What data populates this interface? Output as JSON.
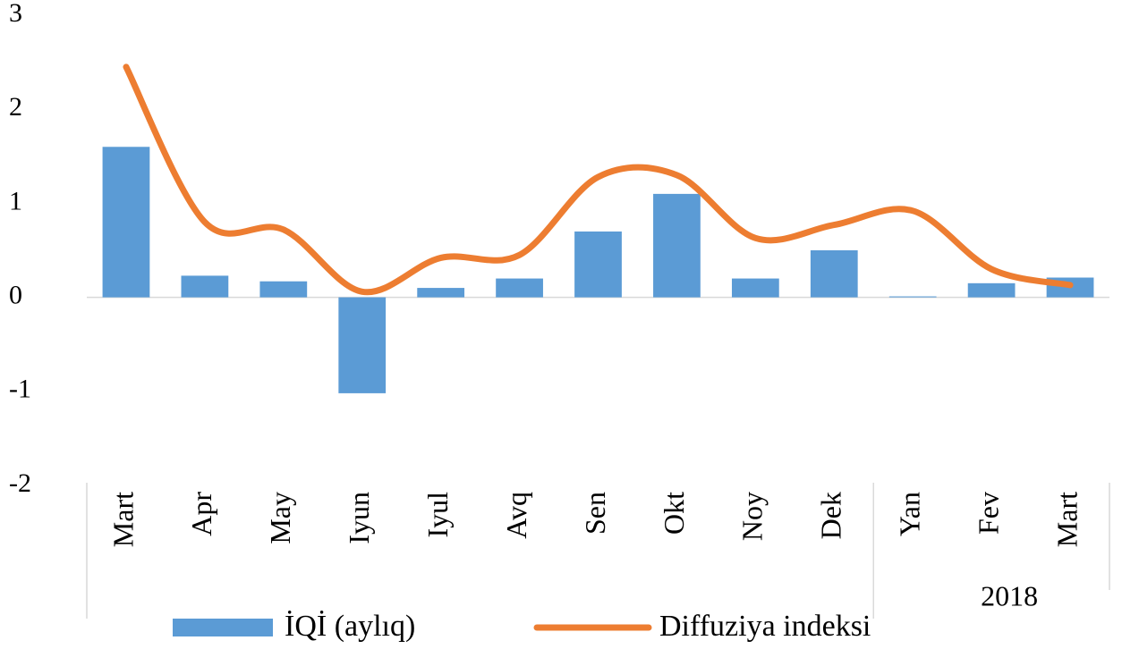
{
  "chart_data": {
    "type": "bar_line",
    "categories": [
      "Mart",
      "Apr",
      "May",
      "Iyun",
      "Iyul",
      "Avq",
      "Sen",
      "Okt",
      "Noy",
      "Dek",
      "Yan",
      "Fev",
      "Mart"
    ],
    "year_label": "2018",
    "series": [
      {
        "name": "İQİ (aylıq)",
        "type": "bar",
        "color": "#5b9bd5",
        "values": [
          1.6,
          0.23,
          0.17,
          -1.02,
          0.1,
          0.2,
          0.7,
          1.1,
          0.2,
          0.5,
          0.01,
          0.15,
          0.21
        ]
      },
      {
        "name": "Diffuziya indeksi",
        "type": "line",
        "color": "#ed7d31",
        "values": [
          2.45,
          0.8,
          0.72,
          0.06,
          0.42,
          0.45,
          1.28,
          1.3,
          0.63,
          0.77,
          0.92,
          0.3,
          0.13
        ]
      }
    ],
    "ylim": [
      -2,
      3
    ],
    "yticks": [
      -2,
      -1,
      0,
      1,
      2,
      3
    ]
  }
}
